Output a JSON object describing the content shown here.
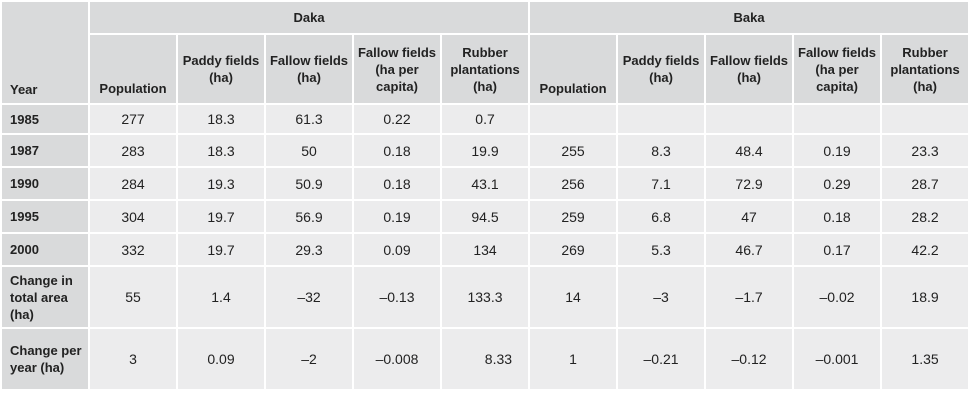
{
  "table": {
    "year_header": "Year",
    "groups": [
      {
        "name": "Daka",
        "columns": [
          "Population",
          "Paddy fields (ha)",
          "Fallow fields (ha)",
          "Fallow fields (ha per capita)",
          "Rubber plantations (ha)"
        ]
      },
      {
        "name": "Baka",
        "columns": [
          "Population",
          "Paddy fields (ha)",
          "Fallow fields (ha)",
          "Fallow fields (ha per capita)",
          "Rubber plantations (ha)"
        ]
      }
    ],
    "rows": [
      {
        "label": "1985",
        "daka": [
          "277",
          "18.3",
          "61.3",
          "0.22",
          "0.7"
        ],
        "baka": [
          "",
          "",
          "",
          "",
          ""
        ]
      },
      {
        "label": "1987",
        "daka": [
          "283",
          "18.3",
          "50",
          "0.18",
          "19.9"
        ],
        "baka": [
          "255",
          "8.3",
          "48.4",
          "0.19",
          "23.3"
        ]
      },
      {
        "label": "1990",
        "daka": [
          "284",
          "19.3",
          "50.9",
          "0.18",
          "43.1"
        ],
        "baka": [
          "256",
          "7.1",
          "72.9",
          "0.29",
          "28.7"
        ]
      },
      {
        "label": "1995",
        "daka": [
          "304",
          "19.7",
          "56.9",
          "0.19",
          "94.5"
        ],
        "baka": [
          "259",
          "6.8",
          "47",
          "0.18",
          "28.2"
        ]
      },
      {
        "label": "2000",
        "daka": [
          "332",
          "19.7",
          "29.3",
          "0.09",
          "134"
        ],
        "baka": [
          "269",
          "5.3",
          "46.7",
          "0.17",
          "42.2"
        ]
      },
      {
        "label": "Change in total area (ha)",
        "daka": [
          "55",
          "1.4",
          "–32",
          "–0.13",
          "133.3"
        ],
        "baka": [
          "14",
          "–3",
          "–1.7",
          "–0.02",
          "18.9"
        ]
      },
      {
        "label": "Change per year (ha)",
        "daka": [
          "3",
          "0.09",
          "–2",
          "–0.008",
          "8.33"
        ],
        "baka": [
          "1",
          "–0.21",
          "–0.12",
          "–0.001",
          "1.35"
        ]
      }
    ]
  }
}
